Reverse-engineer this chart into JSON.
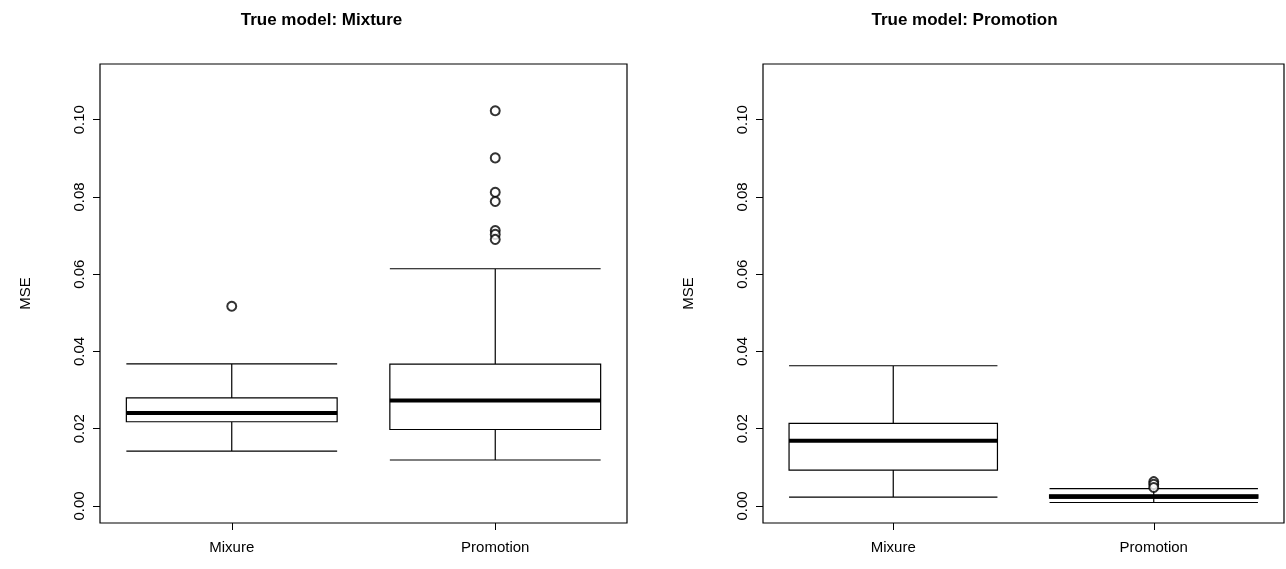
{
  "chart_data": [
    {
      "type": "box",
      "title": "True model: Mixture",
      "ylabel": "MSE",
      "categories": [
        "Mixure",
        "Promotion"
      ],
      "boxes": [
        {
          "low": 0.0142,
          "q1": 0.0218,
          "median": 0.0241,
          "q3": 0.028,
          "high": 0.0368,
          "outliers": [
            0.0517
          ]
        },
        {
          "low": 0.0119,
          "q1": 0.0198,
          "median": 0.0273,
          "q3": 0.0367,
          "high": 0.0614,
          "outliers": [
            0.1023,
            0.0901,
            0.0812,
            0.0788,
            0.0713,
            0.0703,
            0.069
          ]
        }
      ],
      "ylim": [
        -0.0044,
        0.1144
      ],
      "yticks": [
        {
          "value": 0,
          "label": "0.00"
        },
        {
          "value": 0.02,
          "label": "0.02"
        },
        {
          "value": 0.04,
          "label": "0.04"
        },
        {
          "value": 0.06,
          "label": "0.06"
        },
        {
          "value": 0.08,
          "label": "0.08"
        },
        {
          "value": 0.1,
          "label": "0.10"
        }
      ]
    },
    {
      "type": "box",
      "title": "True model: Promotion",
      "ylabel": "MSE",
      "categories": [
        "Mixure",
        "Promotion"
      ],
      "boxes": [
        {
          "low": 0.0023,
          "q1": 0.0093,
          "median": 0.0169,
          "q3": 0.0214,
          "high": 0.0363
        },
        {
          "low": 0.0009,
          "q1": 0.002,
          "median": 0.0024,
          "q3": 0.0029,
          "high": 0.0045,
          "outliers": [
            0.0063,
            0.0056,
            0.0048
          ]
        }
      ],
      "ylim": [
        -0.0044,
        0.1144
      ],
      "yticks": [
        {
          "value": 0,
          "label": "0.00"
        },
        {
          "value": 0.02,
          "label": "0.02"
        },
        {
          "value": 0.04,
          "label": "0.04"
        },
        {
          "value": 0.06,
          "label": "0.06"
        },
        {
          "value": 0.08,
          "label": "0.08"
        },
        {
          "value": 0.1,
          "label": "0.10"
        }
      ]
    }
  ]
}
